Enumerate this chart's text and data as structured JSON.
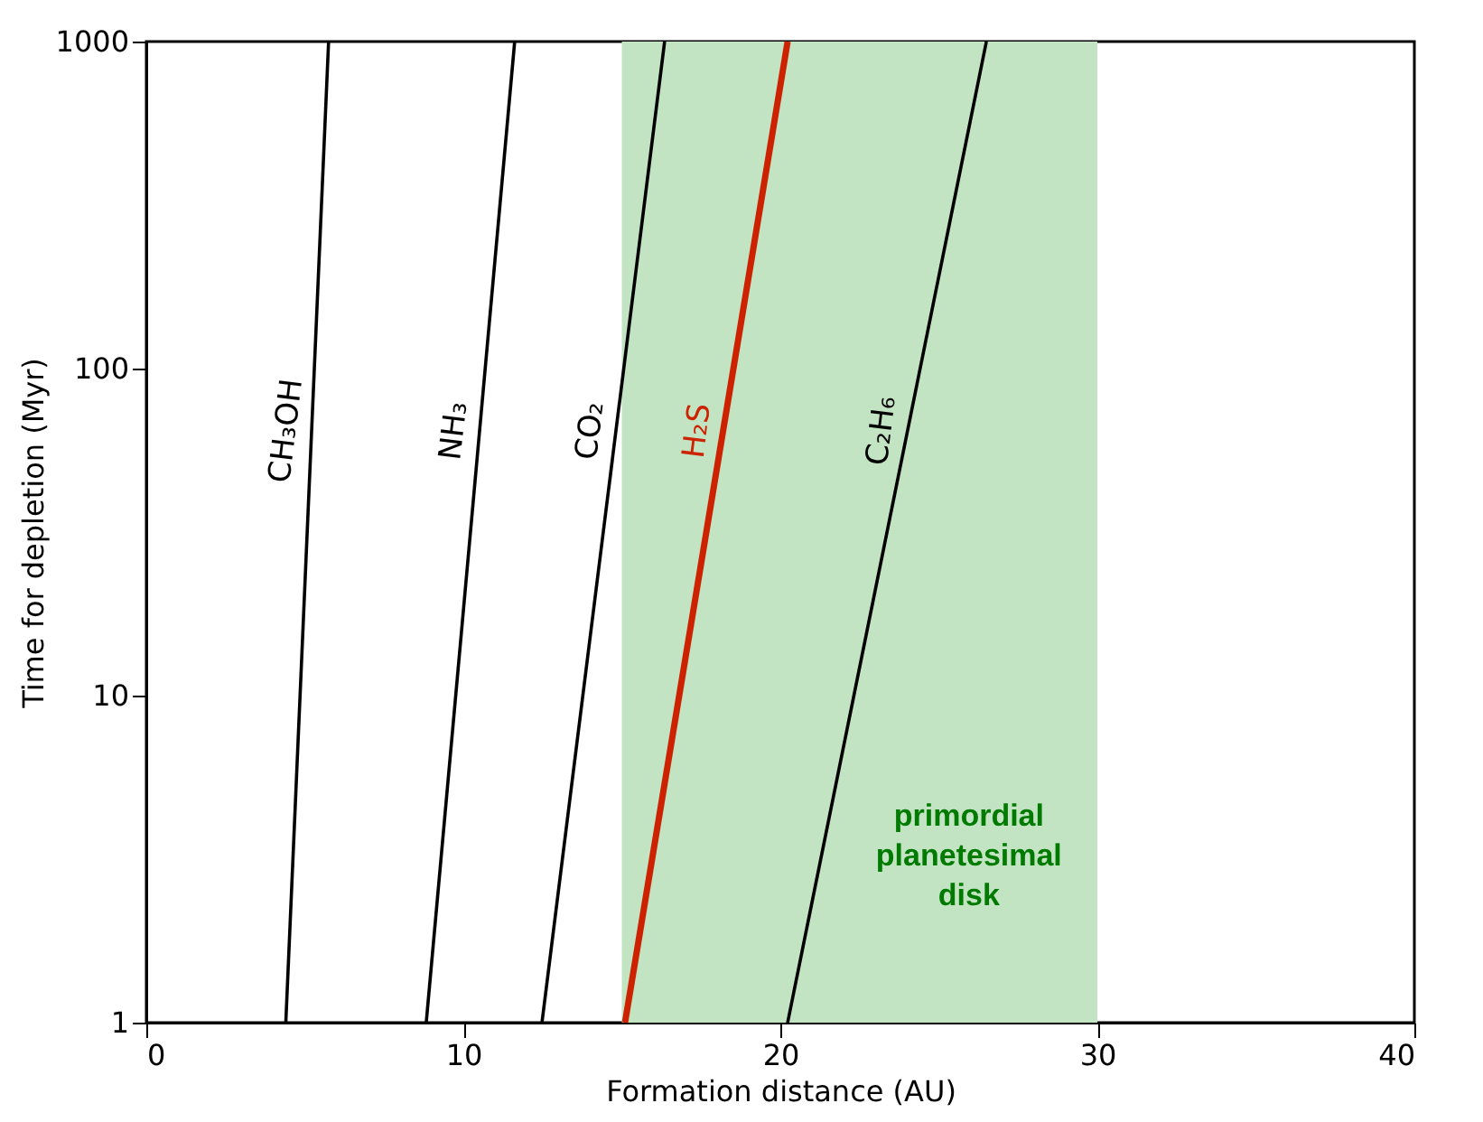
{
  "chart_data": {
    "type": "line",
    "xlabel": "Formation distance (AU)",
    "ylabel": "Time for depletion (Myr)",
    "xlim": [
      0,
      40
    ],
    "xticks": [
      0,
      10,
      20,
      30,
      40
    ],
    "ylim": [
      1,
      1000
    ],
    "yticks": [
      1,
      10,
      100,
      1000
    ],
    "log": "y",
    "grid": false,
    "marker": "none",
    "line_style": "solid",
    "series": [
      {
        "name": "CH₃OH",
        "color": "#000000",
        "x": [
          4.4,
          5.75
        ],
        "values": [
          1,
          1000
        ]
      },
      {
        "name": "NH₃",
        "color": "#000000",
        "x": [
          8.83,
          11.62
        ],
        "values": [
          1,
          1000
        ]
      },
      {
        "name": "CO₂",
        "color": "#000000",
        "x": [
          12.48,
          16.35
        ],
        "values": [
          1,
          1000
        ]
      },
      {
        "name": "H₂S",
        "color": "#cc2200",
        "x": [
          15.1,
          20.23
        ],
        "values": [
          1,
          1000
        ]
      },
      {
        "name": "C₂H₆",
        "color": "#000000",
        "x": [
          20.23,
          26.5
        ],
        "values": [
          1,
          1000
        ]
      }
    ],
    "bands": [
      {
        "axis": "x",
        "from": 15,
        "to": 30,
        "color": "#c2e4c2",
        "label": "primordial planetesimal disk"
      }
    ]
  }
}
